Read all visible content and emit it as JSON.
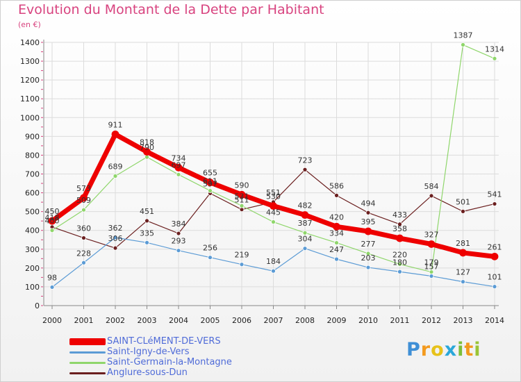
{
  "title": "Evolution du Montant de la Dette par Habitant",
  "unit": "(en €)",
  "logo": {
    "text": "Proxiti",
    "letters": [
      "P",
      "r",
      "o",
      "x",
      "i",
      "t",
      "i"
    ],
    "colors": [
      "#3f8fd6",
      "#f39a1e",
      "#e7c21a",
      "#2aa7d9",
      "#7cbf3a",
      "#f39a1e",
      "#9bc436"
    ]
  },
  "chart_data": {
    "type": "line",
    "x": [
      "2000",
      "2001",
      "2002",
      "2003",
      "2004",
      "2005",
      "2006",
      "2007",
      "2008",
      "2009",
      "2010",
      "2011",
      "2012",
      "2013",
      "2014"
    ],
    "ylim": [
      0,
      1400
    ],
    "yticks": [
      0,
      100,
      200,
      300,
      400,
      500,
      600,
      700,
      800,
      900,
      1000,
      1100,
      1200,
      1300,
      1400
    ],
    "ylabel": "(en €)",
    "grid": true,
    "legend": "bottom-left",
    "series": [
      {
        "name": "Anglure-sous-Dun",
        "color": "#6b1f1f",
        "width": 1.2,
        "values": [
          418,
          360,
          306,
          451,
          384,
          597,
          511,
          551,
          723,
          586,
          494,
          433,
          584,
          501,
          541
        ],
        "labels": [
          "418",
          "360",
          "306",
          "451",
          "384",
          "597",
          "511",
          "551",
          "723",
          "586",
          "494",
          "433",
          "584",
          "501",
          "541"
        ]
      },
      {
        "name": "Saint-Igny-de-Vers",
        "color": "#5b9bd5",
        "width": 1.2,
        "values": [
          98,
          228,
          362,
          335,
          293,
          256,
          219,
          184,
          304,
          247,
          203,
          180,
          157,
          127,
          101
        ],
        "labels": [
          "98",
          "228",
          "362",
          "335",
          "293",
          "256",
          "219",
          "184",
          "304",
          "247",
          "203",
          "180",
          "157",
          "127",
          "101"
        ]
      },
      {
        "name": "Saint-Germain-la-Montagne",
        "color": "#8fd66b",
        "width": 1.2,
        "values": [
          400,
          509,
          689,
          790,
          697,
          611,
          531,
          445,
          387,
          334,
          277,
          220,
          179,
          1387,
          1314
        ],
        "labels": [
          "400",
          "509",
          "689",
          "790",
          "697",
          "611",
          "531",
          "445",
          "387",
          "334",
          "277",
          "220",
          "179",
          "1387",
          "1314"
        ]
      },
      {
        "name": "SAINT-CLéMENT-DE-VERS",
        "color": "#ee0000",
        "width": 7,
        "values": [
          450,
          573,
          911,
          818,
          734,
          655,
          590,
          530,
          482,
          420,
          395,
          358,
          327,
          281,
          261
        ],
        "labels": [
          "450",
          "573",
          "911",
          "818",
          "734",
          "655",
          "590",
          "530",
          "482",
          "420",
          "395",
          "358",
          "327",
          "281",
          "261"
        ]
      }
    ]
  },
  "legend_items": [
    {
      "label": "SAINT-CLéMENT-DE-VERS",
      "color": "#ee0000",
      "thick": 10
    },
    {
      "label": "Saint-Igny-de-Vers",
      "color": "#5b9bd5",
      "thick": 3
    },
    {
      "label": "Saint-Germain-la-Montagne",
      "color": "#8fd66b",
      "thick": 3
    },
    {
      "label": "Anglure-sous-Dun",
      "color": "#6b1f1f",
      "thick": 3
    }
  ]
}
